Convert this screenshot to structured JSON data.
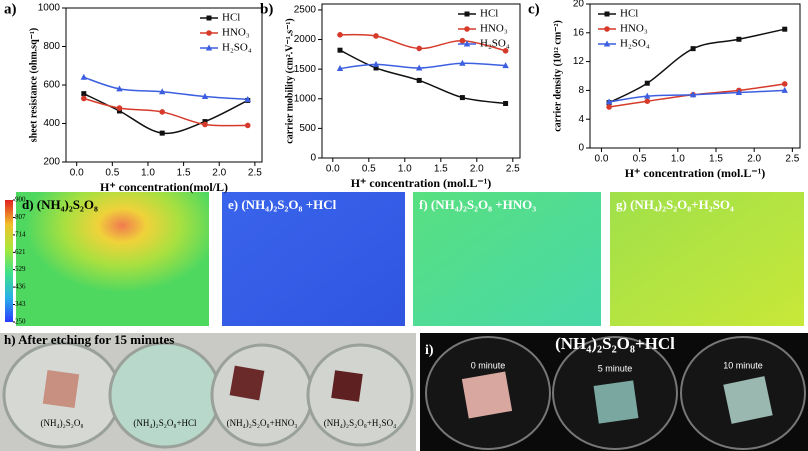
{
  "chart_data": [
    {
      "type": "line",
      "panel": "a)",
      "x_label": "H⁺ concentration(mol/L)",
      "y_label": "sheet resistance (ohm.sq⁻¹)",
      "legend": "upper right",
      "x": [
        0.1,
        0.6,
        1.2,
        1.8,
        2.4
      ],
      "xlim": [
        -0.15,
        2.6
      ],
      "ylim": [
        200,
        1000
      ],
      "xticks": [
        {
          "value": 0,
          "label": "0.0"
        },
        0.5,
        {
          "value": 1,
          "label": "1.0"
        },
        1.5,
        {
          "value": 2,
          "label": "2.0"
        },
        2.5
      ],
      "yticks": [
        200,
        400,
        600,
        800,
        1000
      ],
      "series": [
        {
          "name": "HCl",
          "color": "#111111",
          "marker": "square",
          "values": [
            555,
            465,
            350,
            410,
            520
          ]
        },
        {
          "name": "HNO₃",
          "color": "#d63a2a",
          "marker": "circle",
          "values": [
            530,
            480,
            460,
            395,
            390
          ]
        },
        {
          "name": "H₂SO₄",
          "color": "#3b5fe0",
          "marker": "triangle",
          "values": [
            640,
            580,
            565,
            540,
            525
          ]
        }
      ]
    },
    {
      "type": "line",
      "panel": "b)",
      "x_label": "H⁺ concentration (mol.L⁻¹)",
      "y_label": "carrier mobility (cm².V⁻¹.s⁻¹)",
      "legend": "upper right",
      "x": [
        0.1,
        0.6,
        1.2,
        1.8,
        2.4
      ],
      "xlim": [
        -0.15,
        2.6
      ],
      "ylim": [
        0,
        2600
      ],
      "xticks": [
        {
          "value": 0,
          "label": "0.0"
        },
        0.5,
        {
          "value": 1,
          "label": "1.0"
        },
        1.5,
        {
          "value": 2,
          "label": "2.0"
        },
        2.5
      ],
      "yticks": [
        0,
        500,
        1000,
        1500,
        2000,
        2500
      ],
      "series": [
        {
          "name": "HCl",
          "color": "#111111",
          "marker": "square",
          "values": [
            1820,
            1520,
            1310,
            1020,
            920
          ]
        },
        {
          "name": "HNO₃",
          "color": "#d63a2a",
          "marker": "circle",
          "values": [
            2080,
            2060,
            1850,
            1980,
            1810
          ]
        },
        {
          "name": "H₂SO₄",
          "color": "#3b5fe0",
          "marker": "triangle",
          "values": [
            1510,
            1580,
            1520,
            1600,
            1560
          ]
        }
      ]
    },
    {
      "type": "line",
      "panel": "c)",
      "x_label": "H⁺ concentration (mol.L⁻¹)",
      "y_label": "carrier density (10¹² cm⁻²)",
      "legend": "upper left",
      "x": [
        0.1,
        0.6,
        1.2,
        1.8,
        2.4
      ],
      "xlim": [
        -0.15,
        2.6
      ],
      "ylim": [
        0,
        20
      ],
      "xticks": [
        {
          "value": 0,
          "label": "0.0"
        },
        0.5,
        {
          "value": 1,
          "label": "1.0"
        },
        1.5,
        {
          "value": 2,
          "label": "2.0"
        },
        2.5
      ],
      "yticks": [
        0,
        4,
        8,
        12,
        16,
        20
      ],
      "series": [
        {
          "name": "HCl",
          "color": "#111111",
          "marker": "square",
          "values": [
            6.3,
            9.0,
            13.8,
            15.1,
            16.5
          ]
        },
        {
          "name": "HNO₃",
          "color": "#d63a2a",
          "marker": "circle",
          "values": [
            5.7,
            6.5,
            7.4,
            8.0,
            8.9
          ]
        },
        {
          "name": "H₂SO₄",
          "color": "#3b5fe0",
          "marker": "triangle",
          "values": [
            6.4,
            7.2,
            7.4,
            7.7,
            8.0
          ]
        }
      ]
    }
  ],
  "heatmaps": {
    "colorbar_ticks": [
      250,
      343,
      436,
      529,
      621,
      714,
      807,
      900
    ],
    "panels": [
      "d) (NH₄)₂S₂O₈",
      "e) (NH₄)₂S₂O₈ +HCl",
      "f) (NH₄)₂S₂O₈ +HNO₃",
      "g) (NH₄)₂S₂O₈+H₂SO₄"
    ]
  },
  "photos": {
    "h": {
      "title": "h) After etching for 15 minutes",
      "labels": [
        "(NH₄)₂S₂O₈",
        "(NH₄)₂S₂O₈+HCl",
        "(NH₄)₂S₂O₈+HNO₃",
        "(NH₄)₂S₂O₈+H₂SO₄"
      ]
    },
    "i": {
      "panel": "i)",
      "title": "(NH₄)₂S₂O₈+HCl",
      "labels": [
        "0 minute",
        "5 minute",
        "10 minute"
      ]
    }
  }
}
